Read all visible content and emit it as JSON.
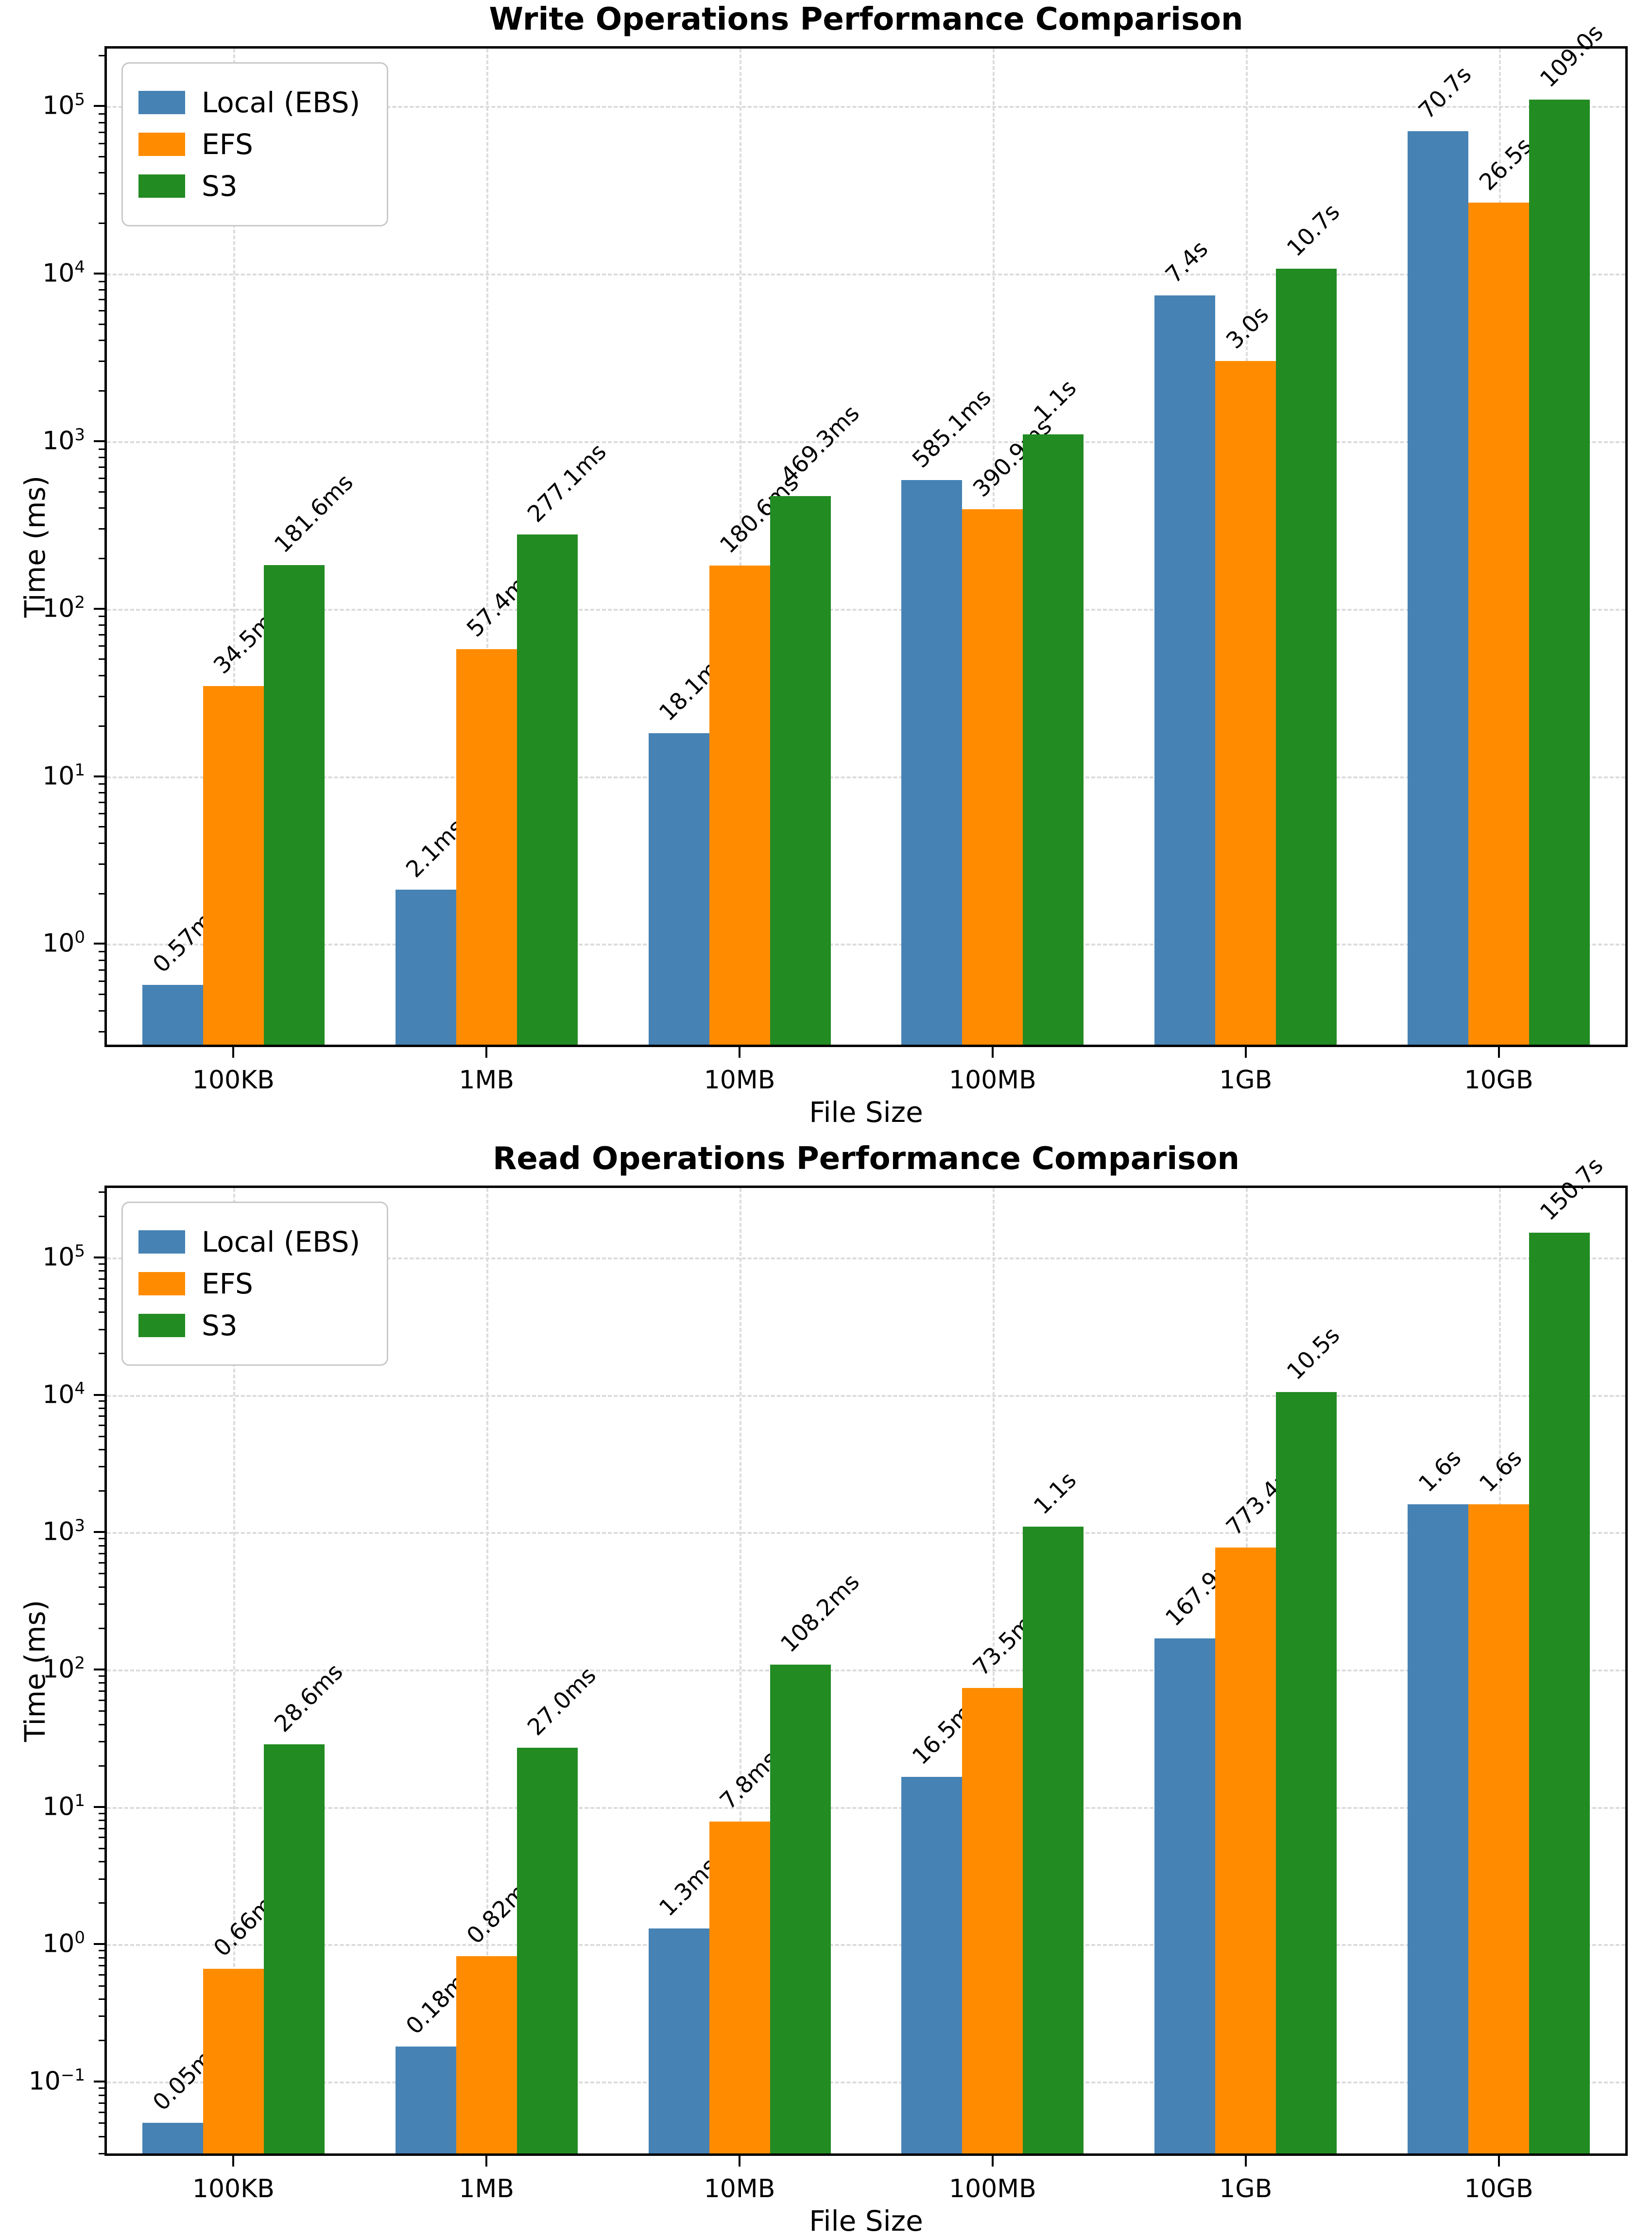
{
  "figure": {
    "background": "#ffffff"
  },
  "style": {
    "grid_color": "#dcdcdc",
    "spine_color": "#000000",
    "series_colors": {
      "local_ebs": "#4682b4",
      "efs": "#ff8c00",
      "s3": "#228b22"
    }
  },
  "chart_data": [
    {
      "type": "bar",
      "title": "Write Operations Performance Comparison",
      "xlabel": "File Size",
      "ylabel": "Time (ms)",
      "yscale": "log",
      "grid": true,
      "legend_position": "upper left",
      "categories": [
        "100KB",
        "1MB",
        "10MB",
        "100MB",
        "1GB",
        "10GB"
      ],
      "ytick_exponents": [
        0,
        1,
        2,
        3,
        4,
        5
      ],
      "ylim": [
        0.25,
        220000
      ],
      "series": [
        {
          "name": "Local (EBS)",
          "color": "#4682b4",
          "values_ms": [
            0.57,
            2.1,
            18.1,
            585.1,
            7400,
            70700
          ],
          "labels": [
            "0.57ms",
            "2.1ms",
            "18.1ms",
            "585.1ms",
            "7.4s",
            "70.7s"
          ]
        },
        {
          "name": "EFS",
          "color": "#ff8c00",
          "values_ms": [
            34.5,
            57.4,
            180.6,
            390.9,
            3000,
            26500
          ],
          "labels": [
            "34.5ms",
            "57.4ms",
            "180.6ms",
            "390.9ms",
            "3.0s",
            "26.5s"
          ]
        },
        {
          "name": "S3",
          "color": "#228b22",
          "values_ms": [
            181.6,
            277.1,
            469.3,
            1100,
            10700,
            109000
          ],
          "labels": [
            "181.6ms",
            "277.1ms",
            "469.3ms",
            "1.1s",
            "10.7s",
            "109.0s"
          ]
        }
      ]
    },
    {
      "type": "bar",
      "title": "Read Operations Performance Comparison",
      "xlabel": "File Size",
      "ylabel": "Time (ms)",
      "yscale": "log",
      "grid": true,
      "legend_position": "upper left",
      "categories": [
        "100KB",
        "1MB",
        "10MB",
        "100MB",
        "1GB",
        "10GB"
      ],
      "ytick_exponents": [
        -1,
        0,
        1,
        2,
        3,
        4,
        5
      ],
      "ylim": [
        0.03,
        320000
      ],
      "series": [
        {
          "name": "Local (EBS)",
          "color": "#4682b4",
          "values_ms": [
            0.05,
            0.18,
            1.3,
            16.5,
            167.9,
            1600
          ],
          "labels": [
            "0.05ms",
            "0.18ms",
            "1.3ms",
            "16.5ms",
            "167.9ms",
            "1.6s"
          ]
        },
        {
          "name": "EFS",
          "color": "#ff8c00",
          "values_ms": [
            0.66,
            0.82,
            7.8,
            73.5,
            773.4,
            1600
          ],
          "labels": [
            "0.66ms",
            "0.82ms",
            "7.8ms",
            "73.5ms",
            "773.4ms",
            "1.6s"
          ]
        },
        {
          "name": "S3",
          "color": "#228b22",
          "values_ms": [
            28.6,
            27.0,
            108.2,
            1100,
            10500,
            150700
          ],
          "labels": [
            "28.6ms",
            "27.0ms",
            "108.2ms",
            "1.1s",
            "10.5s",
            "150.7s"
          ]
        }
      ]
    }
  ]
}
